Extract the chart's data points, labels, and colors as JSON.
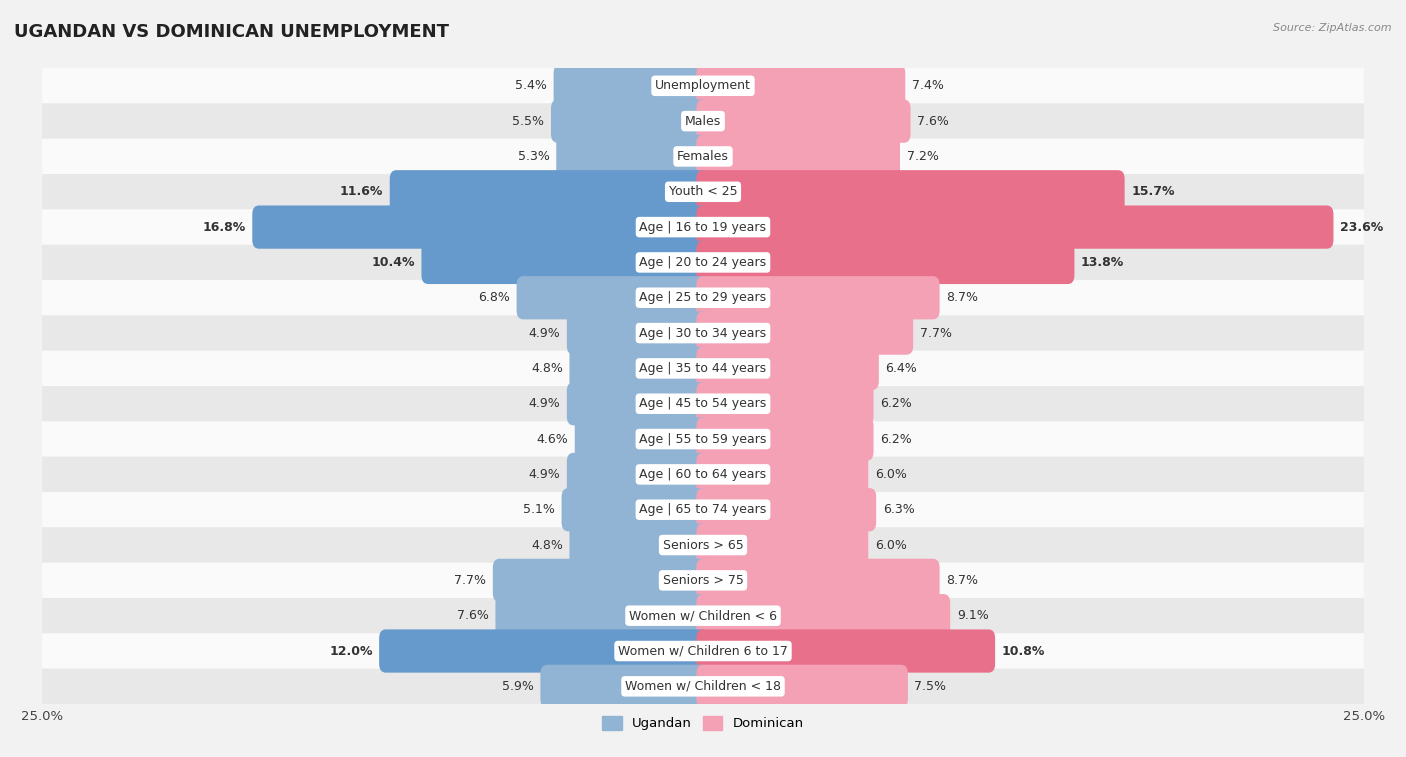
{
  "title": "UGANDAN VS DOMINICAN UNEMPLOYMENT",
  "source": "Source: ZipAtlas.com",
  "categories": [
    "Unemployment",
    "Males",
    "Females",
    "Youth < 25",
    "Age | 16 to 19 years",
    "Age | 20 to 24 years",
    "Age | 25 to 29 years",
    "Age | 30 to 34 years",
    "Age | 35 to 44 years",
    "Age | 45 to 54 years",
    "Age | 55 to 59 years",
    "Age | 60 to 64 years",
    "Age | 65 to 74 years",
    "Seniors > 65",
    "Seniors > 75",
    "Women w/ Children < 6",
    "Women w/ Children 6 to 17",
    "Women w/ Children < 18"
  ],
  "ugandan": [
    5.4,
    5.5,
    5.3,
    11.6,
    16.8,
    10.4,
    6.8,
    4.9,
    4.8,
    4.9,
    4.6,
    4.9,
    5.1,
    4.8,
    7.7,
    7.6,
    12.0,
    5.9
  ],
  "dominican": [
    7.4,
    7.6,
    7.2,
    15.7,
    23.6,
    13.8,
    8.7,
    7.7,
    6.4,
    6.2,
    6.2,
    6.0,
    6.3,
    6.0,
    8.7,
    9.1,
    10.8,
    7.5
  ],
  "ugandan_color_normal": "#92b4d4",
  "ugandan_color_highlight": "#6699cc",
  "dominican_color_normal": "#f4a0b5",
  "dominican_color_highlight": "#e8708a",
  "bg_color": "#f2f2f2",
  "row_light": "#fafafa",
  "row_dark": "#e8e8e8",
  "axis_limit": 25.0,
  "legend_ugandan": "Ugandan",
  "legend_dominican": "Dominican",
  "title_fontsize": 13,
  "label_fontsize": 9,
  "value_fontsize": 9
}
